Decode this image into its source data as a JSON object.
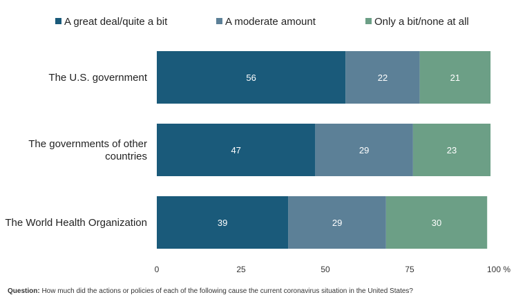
{
  "chart_data": {
    "type": "bar",
    "orientation": "horizontal",
    "stacked": true,
    "categories": [
      [
        "The U.S. government"
      ],
      [
        "The governments of other",
        "countries"
      ],
      [
        "The World Health Organization"
      ]
    ],
    "series": [
      {
        "name": "A great deal/quite a bit",
        "color": "#1a5a7a",
        "values": [
          56,
          47,
          39
        ]
      },
      {
        "name": "A moderate amount",
        "color": "#5c8097",
        "values": [
          22,
          29,
          29
        ]
      },
      {
        "name": "Only a bit/none at all",
        "color": "#6c9f86",
        "values": [
          21,
          23,
          30
        ]
      }
    ],
    "xlim": [
      0,
      100
    ],
    "xticks": [
      "0",
      "25",
      "50",
      "75",
      "100 %"
    ],
    "legend_position": "top",
    "grid": false
  },
  "footnote": {
    "label": "Question:",
    "text": " How much did the actions or policies of each of the following cause the current coronavirus situation in the United States?"
  }
}
